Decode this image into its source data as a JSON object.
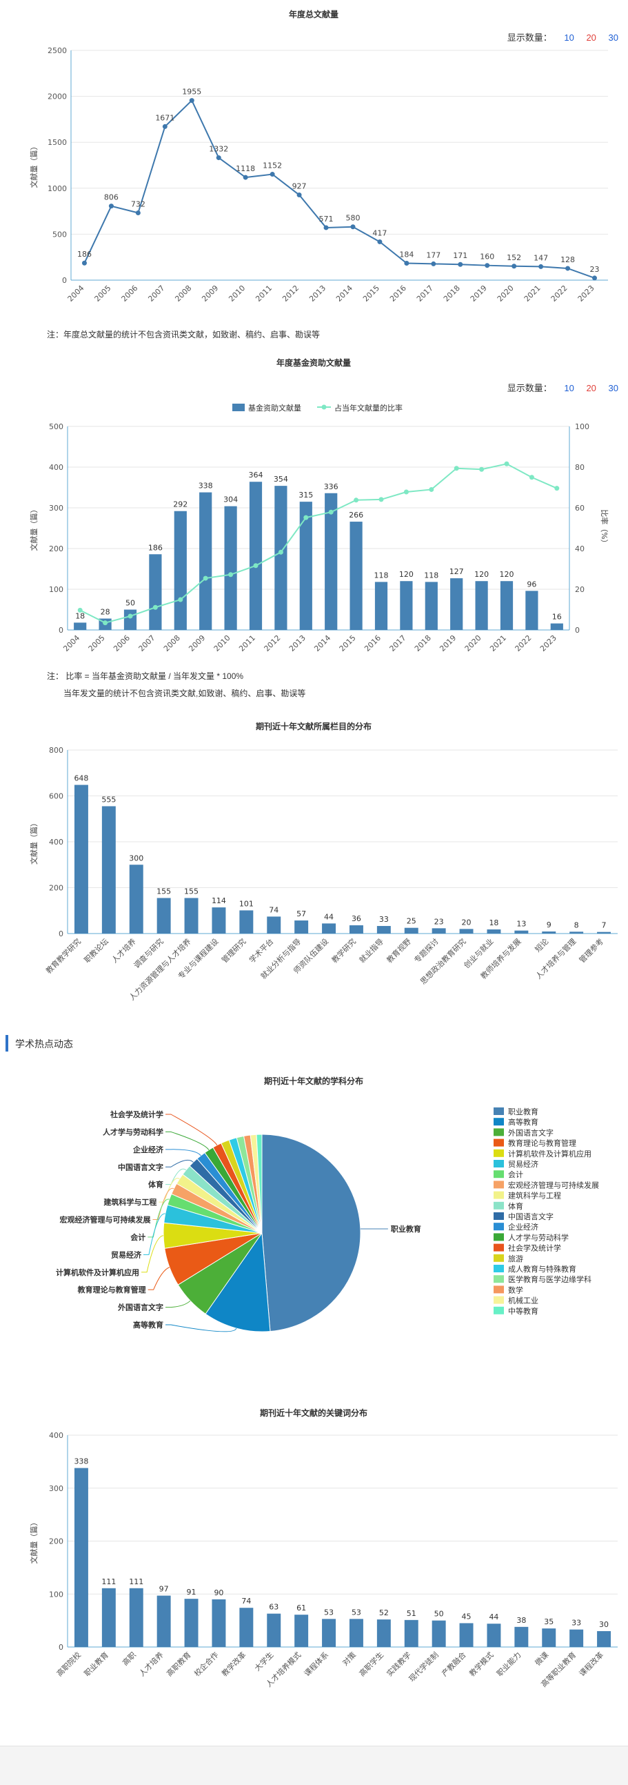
{
  "display_count": {
    "label": "显示数量：",
    "options": [
      "10",
      "20",
      "30"
    ],
    "colors": [
      "#1e5fd4",
      "#e0403a",
      "#1e5fd4"
    ]
  },
  "section": {
    "title": "学术热点动态"
  },
  "notes": {
    "chart1": "注：年度总文献量的统计不包含资讯类文献，如致谢、稿约、启事、勘误等",
    "chart2_line1": "注： 比率 = 当年基金资助文献量 / 当年发文量 * 100%",
    "chart2_line2": "当年发文量的统计不包含资讯类文献,如致谢、稿约、启事、勘误等"
  },
  "chart_data": [
    {
      "id": "annual-total",
      "type": "line",
      "title": "年度总文献量",
      "ylabel": "文献量（篇）",
      "ylim": [
        0,
        2500
      ],
      "yticks": [
        0,
        500,
        1000,
        1500,
        2000,
        2500
      ],
      "grid": true,
      "categories": [
        "2004",
        "2005",
        "2006",
        "2007",
        "2008",
        "2009",
        "2010",
        "2011",
        "2012",
        "2013",
        "2014",
        "2015",
        "2016",
        "2017",
        "2018",
        "2019",
        "2020",
        "2021",
        "2022",
        "2023"
      ],
      "values": [
        186,
        806,
        732,
        1671,
        1955,
        1332,
        1118,
        1152,
        927,
        571,
        580,
        417,
        184,
        177,
        171,
        160,
        152,
        147,
        128,
        23
      ],
      "color": "#3e78ad"
    },
    {
      "id": "funded",
      "type": "bar",
      "title": "年度基金资助文献量",
      "ylabel": "文献量（篇）",
      "y2label": "比率（%）",
      "ylim": [
        0,
        500
      ],
      "yticks": [
        0,
        100,
        200,
        300,
        400,
        500
      ],
      "y2lim": [
        0,
        100
      ],
      "y2ticks": [
        0,
        20,
        40,
        60,
        80,
        100
      ],
      "legend_position": "top",
      "categories": [
        "2004",
        "2005",
        "2006",
        "2007",
        "2008",
        "2009",
        "2010",
        "2011",
        "2012",
        "2013",
        "2014",
        "2015",
        "2016",
        "2017",
        "2018",
        "2019",
        "2020",
        "2021",
        "2022",
        "2023"
      ],
      "series": [
        {
          "name": "基金资助文献量",
          "type": "bar",
          "color": "#4682b4",
          "values": [
            18,
            28,
            50,
            186,
            292,
            338,
            304,
            364,
            354,
            315,
            336,
            266,
            118,
            120,
            118,
            127,
            120,
            120,
            96,
            16
          ]
        },
        {
          "name": "占当年文献量的比率",
          "type": "line",
          "axis": "right",
          "color": "#7ee8c4",
          "values": [
            9.7,
            3.5,
            6.8,
            11.1,
            14.9,
            25.4,
            27.2,
            31.6,
            38.2,
            55.2,
            57.9,
            63.8,
            64.1,
            67.8,
            69.0,
            79.4,
            78.9,
            81.6,
            75.0,
            69.6
          ]
        }
      ]
    },
    {
      "id": "column-distribution",
      "type": "bar",
      "title": "期刊近十年文献所属栏目的分布",
      "ylabel": "文献量（篇）",
      "ylim": [
        0,
        800
      ],
      "yticks": [
        0,
        200,
        400,
        600,
        800
      ],
      "categories": [
        "教育教学研究",
        "职教论坛",
        "人才培养",
        "调查与研究",
        "人力资源管理与人才培养",
        "专业与课程建设",
        "管理研究",
        "学术平台",
        "就业分析与指导",
        "师资队伍建设",
        "教学研究",
        "就业指导",
        "教育视野",
        "专题探讨",
        "思想政治教育研究",
        "创业与就业",
        "教师培养与发展",
        "短论",
        "人才培养与管理",
        "管理参考"
      ],
      "values": [
        648,
        555,
        300,
        155,
        155,
        114,
        101,
        74,
        57,
        44,
        36,
        33,
        25,
        23,
        20,
        18,
        13,
        9,
        8,
        7
      ],
      "color": "#4682b4"
    },
    {
      "id": "subject-distribution",
      "type": "pie",
      "title": "期刊近十年文献的学科分布",
      "legend_position": "right",
      "slices": [
        {
          "name": "职业教育",
          "value": 2470,
          "color": "#4682b4"
        },
        {
          "name": "高等教育",
          "value": 560,
          "color": "#0f86c6"
        },
        {
          "name": "外国语言文字",
          "value": 330,
          "color": "#4caf38"
        },
        {
          "name": "教育理论与教育管理",
          "value": 320,
          "color": "#ea5a16"
        },
        {
          "name": "计算机软件及计算机应用",
          "value": 210,
          "color": "#dbdd12"
        },
        {
          "name": "贸易经济",
          "value": 150,
          "color": "#2bc1dc"
        },
        {
          "name": "会计",
          "value": 95,
          "color": "#66de70"
        },
        {
          "name": "宏观经济管理与可持续发展",
          "value": 95,
          "color": "#f6a266"
        },
        {
          "name": "建筑科学与工程",
          "value": 90,
          "color": "#f2f28a"
        },
        {
          "name": "体育",
          "value": 90,
          "color": "#8be3c8"
        },
        {
          "name": "中国语言文字",
          "value": 85,
          "color": "#2f6ca6"
        },
        {
          "name": "企业经济",
          "value": 80,
          "color": "#2a8ed4"
        },
        {
          "name": "人才学与劳动科学",
          "value": 80,
          "color": "#3aa837"
        },
        {
          "name": "社会学及统计学",
          "value": 75,
          "color": "#e8541c"
        },
        {
          "name": "旅游",
          "value": 70,
          "color": "#d8d41d"
        },
        {
          "name": "成人教育与特殊教育",
          "value": 65,
          "color": "#2fcbe6"
        },
        {
          "name": "医学教育与医学边缘学科",
          "value": 60,
          "color": "#8ee69a"
        },
        {
          "name": "数学",
          "value": 55,
          "color": "#f5975e"
        },
        {
          "name": "机械工业",
          "value": 50,
          "color": "#f7f39a"
        },
        {
          "name": "中等教育",
          "value": 45,
          "color": "#67f0c6"
        }
      ],
      "outer_labels": [
        "职业教育",
        "高等教育",
        "外国语言文字",
        "教育理论与教育管理",
        "计算机软件及计算机应用",
        "贸易经济",
        "会计",
        "宏观经济管理与可持续发展",
        "建筑科学与工程",
        "体育",
        "中国语言文字",
        "企业经济",
        "人才学与劳动科学",
        "社会学及统计学"
      ]
    },
    {
      "id": "keyword-distribution",
      "type": "bar",
      "title": "期刊近十年文献的关键词分布",
      "ylabel": "文献量（篇）",
      "ylim": [
        0,
        400
      ],
      "yticks": [
        0,
        100,
        200,
        300,
        400
      ],
      "categories": [
        "高职院校",
        "职业教育",
        "高职",
        "人才培养",
        "高职教育",
        "校企合作",
        "教学改革",
        "大学生",
        "人才培养模式",
        "课程体系",
        "对策",
        "高职学生",
        "实践教学",
        "现代学徒制",
        "产教融合",
        "教学模式",
        "职业能力",
        "微课",
        "高等职业教育",
        "课程改革"
      ],
      "values": [
        338,
        111,
        111,
        97,
        91,
        90,
        74,
        63,
        61,
        53,
        53,
        52,
        51,
        50,
        45,
        44,
        38,
        35,
        33,
        30
      ],
      "color": "#4682b4"
    }
  ]
}
